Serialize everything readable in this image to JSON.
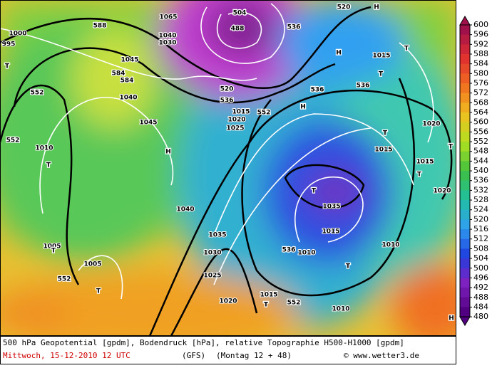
{
  "map": {
    "labels": [
      "1000",
      "588",
      "584",
      "584",
      "1045",
      "1040",
      "552",
      "552",
      "1010",
      "T",
      "1045",
      "H",
      "1040",
      "1035",
      "1030",
      "1025",
      "1020",
      "1015",
      "552",
      "T",
      "1010",
      "T",
      "536",
      "1010",
      "1015",
      "1035",
      "T",
      "520",
      "536",
      "552",
      "1020",
      "1025",
      "1015",
      "504",
      "488",
      "520",
      "H",
      "536",
      "H",
      "536",
      "536",
      "T",
      "H",
      "1015",
      "T",
      "T",
      "1015",
      "1015",
      "T",
      "1020",
      "1010",
      "1020",
      "T",
      "552",
      "1005",
      "T",
      "1005",
      "T",
      "1040",
      "1065",
      "1030",
      "H",
      "T",
      "995"
    ]
  },
  "colorbar": {
    "labels": [
      600,
      596,
      592,
      588,
      584,
      580,
      576,
      572,
      568,
      564,
      560,
      556,
      552,
      548,
      544,
      540,
      536,
      532,
      528,
      524,
      520,
      516,
      512,
      508,
      504,
      500,
      496,
      492,
      488,
      484,
      480
    ]
  },
  "footer": {
    "description": "500 hPa Geopotential [gpdm], Bodendruck [hPa], relative Topographie H500-H1000 [gpdm]",
    "date": "Mittwoch, 15-12-2010  12 UTC",
    "model": "(GFS)",
    "run": "(Montag 12 + 48)",
    "credit": "© www.wetter3.de"
  }
}
